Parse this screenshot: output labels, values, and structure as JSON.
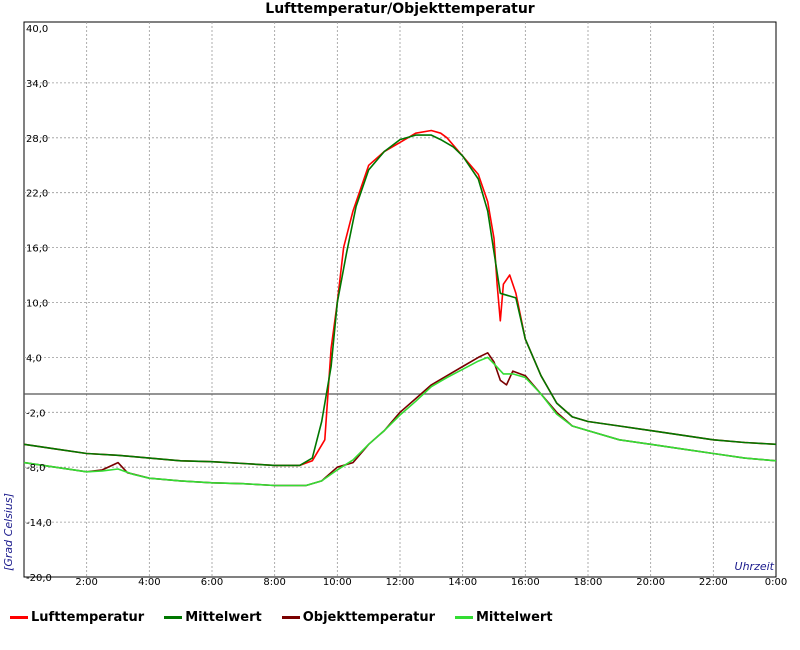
{
  "chart_data": {
    "type": "line",
    "title": "Lufttemperatur/Objekttemperatur",
    "xlabel": "Uhrzeit",
    "ylabel": "[Grad Celsius]",
    "xlim": [
      0,
      24
    ],
    "ylim": [
      -20,
      40
    ],
    "x_tick_labels": [
      "2:00",
      "4:00",
      "6:00",
      "8:00",
      "10:00",
      "12:00",
      "14:00",
      "16:00",
      "18:00",
      "20:00",
      "22:00",
      "0:00"
    ],
    "y_tick_labels": [
      "40,0",
      "34,0",
      "28,0",
      "22,0",
      "16,0",
      "10,0",
      "4,0",
      "-2,0",
      "-8,0",
      "-14,0",
      "-20,0"
    ],
    "grid": true,
    "zero_line": true,
    "legend_position": "bottom",
    "series": [
      {
        "name": "Lufttemperatur",
        "color": "#ff0000",
        "values": [
          [
            0,
            -5.5
          ],
          [
            1,
            -6.0
          ],
          [
            2,
            -6.5
          ],
          [
            3,
            -6.7
          ],
          [
            4,
            -7.0
          ],
          [
            5,
            -7.3
          ],
          [
            6,
            -7.4
          ],
          [
            7,
            -7.6
          ],
          [
            8,
            -7.8
          ],
          [
            8.8,
            -7.8
          ],
          [
            9.2,
            -7.3
          ],
          [
            9.6,
            -5.0
          ],
          [
            9.8,
            5.0
          ],
          [
            10,
            10.0
          ],
          [
            10.2,
            16.0
          ],
          [
            10.5,
            20.0
          ],
          [
            10.8,
            23.0
          ],
          [
            11.0,
            25.0
          ],
          [
            11.5,
            26.5
          ],
          [
            12.0,
            27.5
          ],
          [
            12.5,
            28.5
          ],
          [
            13.0,
            28.8
          ],
          [
            13.3,
            28.5
          ],
          [
            13.5,
            28.0
          ],
          [
            14.0,
            26.0
          ],
          [
            14.5,
            24.0
          ],
          [
            14.8,
            21.0
          ],
          [
            15.0,
            17.0
          ],
          [
            15.1,
            12.0
          ],
          [
            15.2,
            8.0
          ],
          [
            15.3,
            12.0
          ],
          [
            15.5,
            13.0
          ],
          [
            15.7,
            11.0
          ],
          [
            16.0,
            6.0
          ],
          [
            16.5,
            2.0
          ],
          [
            17.0,
            -1.0
          ],
          [
            17.5,
            -2.5
          ],
          [
            18.0,
            -3.0
          ],
          [
            19.0,
            -3.5
          ],
          [
            20.0,
            -4.0
          ],
          [
            21.0,
            -4.5
          ],
          [
            22.0,
            -5.0
          ],
          [
            23.0,
            -5.3
          ],
          [
            24.0,
            -5.5
          ]
        ]
      },
      {
        "name": "Mittelwert",
        "color": "#007700",
        "values": [
          [
            0,
            -5.5
          ],
          [
            1,
            -6.0
          ],
          [
            2,
            -6.5
          ],
          [
            3,
            -6.7
          ],
          [
            4,
            -7.0
          ],
          [
            5,
            -7.3
          ],
          [
            6,
            -7.4
          ],
          [
            7,
            -7.6
          ],
          [
            8,
            -7.8
          ],
          [
            8.8,
            -7.8
          ],
          [
            9.2,
            -7.0
          ],
          [
            9.5,
            -3.0
          ],
          [
            9.8,
            3.0
          ],
          [
            10,
            10.0
          ],
          [
            10.3,
            15.5
          ],
          [
            10.6,
            20.5
          ],
          [
            11.0,
            24.5
          ],
          [
            11.5,
            26.5
          ],
          [
            12.0,
            27.8
          ],
          [
            12.5,
            28.3
          ],
          [
            13.0,
            28.3
          ],
          [
            13.3,
            27.8
          ],
          [
            13.7,
            27.0
          ],
          [
            14.0,
            26.0
          ],
          [
            14.5,
            23.5
          ],
          [
            14.8,
            20.0
          ],
          [
            15.0,
            15.5
          ],
          [
            15.2,
            11.0
          ],
          [
            15.7,
            10.5
          ],
          [
            16.0,
            6.0
          ],
          [
            16.5,
            2.0
          ],
          [
            17.0,
            -1.0
          ],
          [
            17.5,
            -2.5
          ],
          [
            18.0,
            -3.0
          ],
          [
            19.0,
            -3.5
          ],
          [
            20.0,
            -4.0
          ],
          [
            21.0,
            -4.5
          ],
          [
            22.0,
            -5.0
          ],
          [
            23.0,
            -5.3
          ],
          [
            24.0,
            -5.5
          ]
        ]
      },
      {
        "name": "Objekttemperatur",
        "color": "#7a0000",
        "values": [
          [
            0,
            -7.5
          ],
          [
            1,
            -8.0
          ],
          [
            2,
            -8.5
          ],
          [
            2.5,
            -8.3
          ],
          [
            3,
            -7.5
          ],
          [
            3.3,
            -8.6
          ],
          [
            4,
            -9.2
          ],
          [
            5,
            -9.5
          ],
          [
            6,
            -9.7
          ],
          [
            7,
            -9.8
          ],
          [
            8,
            -10.0
          ],
          [
            9.0,
            -10.0
          ],
          [
            9.5,
            -9.5
          ],
          [
            10,
            -8.0
          ],
          [
            10.5,
            -7.5
          ],
          [
            11.0,
            -5.5
          ],
          [
            11.5,
            -4.0
          ],
          [
            12.0,
            -2.0
          ],
          [
            12.5,
            -0.5
          ],
          [
            13.0,
            1.0
          ],
          [
            13.5,
            2.0
          ],
          [
            14.0,
            3.0
          ],
          [
            14.5,
            4.0
          ],
          [
            14.8,
            4.5
          ],
          [
            15.0,
            3.5
          ],
          [
            15.2,
            1.5
          ],
          [
            15.4,
            1.0
          ],
          [
            15.6,
            2.5
          ],
          [
            16.0,
            2.0
          ],
          [
            16.5,
            0.0
          ],
          [
            17.0,
            -2.0
          ],
          [
            17.5,
            -3.5
          ],
          [
            18.0,
            -4.0
          ],
          [
            19.0,
            -5.0
          ],
          [
            20.0,
            -5.5
          ],
          [
            21.0,
            -6.0
          ],
          [
            22.0,
            -6.5
          ],
          [
            23.0,
            -7.0
          ],
          [
            24.0,
            -7.3
          ]
        ]
      },
      {
        "name": "Mittelwert",
        "color": "#33dd33",
        "values": [
          [
            0,
            -7.5
          ],
          [
            1,
            -8.0
          ],
          [
            2,
            -8.5
          ],
          [
            2.5,
            -8.4
          ],
          [
            3,
            -8.2
          ],
          [
            3.5,
            -8.8
          ],
          [
            4,
            -9.2
          ],
          [
            5,
            -9.5
          ],
          [
            6,
            -9.7
          ],
          [
            7,
            -9.8
          ],
          [
            8,
            -10.0
          ],
          [
            9.0,
            -10.0
          ],
          [
            9.5,
            -9.5
          ],
          [
            10,
            -8.3
          ],
          [
            10.5,
            -7.2
          ],
          [
            11.0,
            -5.5
          ],
          [
            11.5,
            -4.0
          ],
          [
            12.0,
            -2.3
          ],
          [
            12.5,
            -0.8
          ],
          [
            13.0,
            0.8
          ],
          [
            13.5,
            1.8
          ],
          [
            14.0,
            2.7
          ],
          [
            14.5,
            3.6
          ],
          [
            14.8,
            4.0
          ],
          [
            15.0,
            3.3
          ],
          [
            15.3,
            2.2
          ],
          [
            15.6,
            2.2
          ],
          [
            16.0,
            1.8
          ],
          [
            16.5,
            0.0
          ],
          [
            17.0,
            -2.2
          ],
          [
            17.5,
            -3.5
          ],
          [
            18.0,
            -4.0
          ],
          [
            19.0,
            -5.0
          ],
          [
            20.0,
            -5.5
          ],
          [
            21.0,
            -6.0
          ],
          [
            22.0,
            -6.5
          ],
          [
            23.0,
            -7.0
          ],
          [
            24.0,
            -7.3
          ]
        ]
      }
    ]
  }
}
